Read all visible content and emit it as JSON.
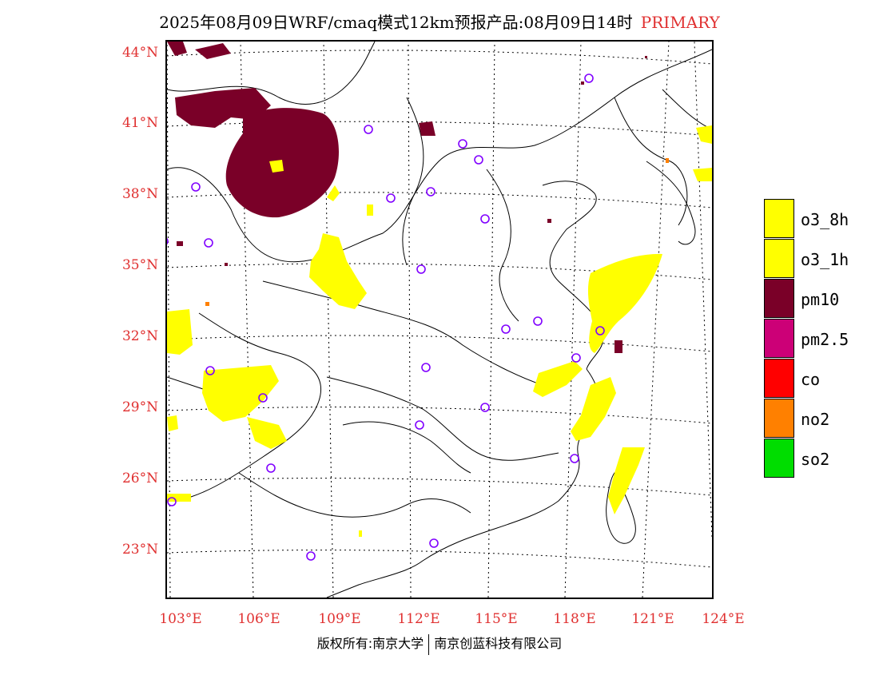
{
  "title": {
    "main": "2025年08月09日WRF/cmaq模式12km预报产品:08月09日14时",
    "tag": "PRIMARY"
  },
  "axes": {
    "lat_labels": [
      "44°N",
      "41°N",
      "38°N",
      "35°N",
      "32°N",
      "29°N",
      "26°N",
      "23°N"
    ],
    "lon_labels": [
      "103°E",
      "106°E",
      "109°E",
      "112°E",
      "115°E",
      "118°E",
      "121°E",
      "124°E"
    ]
  },
  "legend": [
    {
      "label": "o3_8h",
      "color": "#ffff00"
    },
    {
      "label": "o3_1h",
      "color": "#ffff00"
    },
    {
      "label": "pm10",
      "color": "#7a0028"
    },
    {
      "label": "pm2.5",
      "color": "#cc0077"
    },
    {
      "label": "co",
      "color": "#ff0000"
    },
    {
      "label": "no2",
      "color": "#ff8000"
    },
    {
      "label": "so2",
      "color": "#00dd00"
    }
  ],
  "copyright": {
    "left": "版权所有:南京大学",
    "right": "南京创蓝科技有限公司"
  },
  "colors": {
    "axis_label": "#e03030",
    "station_marker": "#8000ff",
    "border_line": "#000000"
  }
}
